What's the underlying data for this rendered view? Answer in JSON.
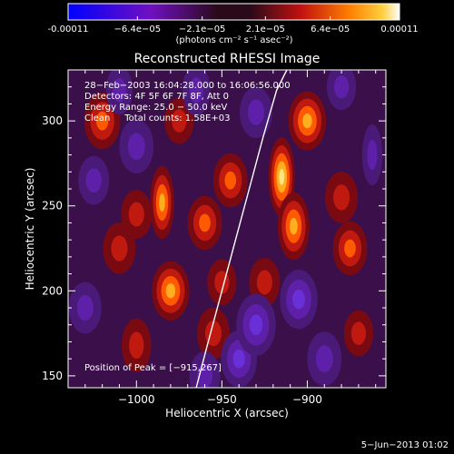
{
  "colorbar": {
    "tick_labels": [
      "-0.00011",
      "−6.4e−05",
      "−2.1e−05",
      "2.1e−05",
      "6.4e−05",
      "0.00011"
    ],
    "tick_values": [
      -0.00011,
      -6.4e-05,
      -2.1e-05,
      2.1e-05,
      6.4e-05,
      0.00011
    ],
    "range": [
      -0.00011,
      0.00011
    ],
    "unit_label": "(photons cm⁻² s⁻¹ asec⁻²)",
    "colormap": [
      "#0000ff",
      "#6a0dad",
      "#2a0a1a",
      "#b01010",
      "#ff6000",
      "#ffd040",
      "#ffffff"
    ]
  },
  "chart_data": {
    "type": "heatmap",
    "title": "Reconstructed RHESSI Image",
    "xlabel": "Heliocentric X (arcsec)",
    "ylabel": "Heliocentric Y (arcsec)",
    "xlim": [
      -1040,
      -854
    ],
    "ylim": [
      143,
      330
    ],
    "x_ticks": [
      -1000,
      -950,
      -900
    ],
    "x_tick_labels": [
      "−1000",
      "−950",
      "−900"
    ],
    "y_ticks": [
      150,
      200,
      250,
      300
    ],
    "y_tick_labels": [
      "150",
      "200",
      "250",
      "300"
    ],
    "annotations": [
      "28−Feb−2003 16:04:28.000 to 16:06:56.000",
      "Detectors: 4F 5F 6F 7F 8F, Att 0",
      "Energy Range: 25.0 − 50.0 keV",
      "Clean     Total counts: 1.58E+03"
    ],
    "peak_label": "Position of Peak = [−915,267]",
    "peak_position": [
      -915,
      267
    ],
    "limb_curve": {
      "x": [
        -965,
        -958,
        -950,
        -942,
        -934,
        -926,
        -918,
        -912
      ],
      "y": [
        143,
        170,
        200,
        230,
        260,
        290,
        318,
        330
      ]
    },
    "blobs": [
      {
        "x": -1020,
        "y": 300,
        "value": 7e-05
      },
      {
        "x": -1010,
        "y": 225,
        "value": 5e-05
      },
      {
        "x": -1000,
        "y": 245,
        "value": 4e-05
      },
      {
        "x": -985,
        "y": 252,
        "value": 9e-05
      },
      {
        "x": -975,
        "y": 300,
        "value": 3e-05
      },
      {
        "x": -980,
        "y": 200,
        "value": 8e-05
      },
      {
        "x": -1000,
        "y": 168,
        "value": 5e-05
      },
      {
        "x": -960,
        "y": 240,
        "value": 6e-05
      },
      {
        "x": -955,
        "y": 175,
        "value": 5e-05
      },
      {
        "x": -945,
        "y": 265,
        "value": 6e-05
      },
      {
        "x": -915,
        "y": 267,
        "value": 0.00011
      },
      {
        "x": -900,
        "y": 300,
        "value": 8e-05
      },
      {
        "x": -908,
        "y": 238,
        "value": 9e-05
      },
      {
        "x": -880,
        "y": 255,
        "value": 5e-05
      },
      {
        "x": -875,
        "y": 225,
        "value": 6e-05
      },
      {
        "x": -925,
        "y": 205,
        "value": 4e-05
      },
      {
        "x": -950,
        "y": 205,
        "value": 3e-05
      },
      {
        "x": -870,
        "y": 175,
        "value": 3e-05
      },
      {
        "x": -940,
        "y": 160,
        "value": -7e-05
      },
      {
        "x": -930,
        "y": 180,
        "value": -9e-05
      },
      {
        "x": -905,
        "y": 195,
        "value": -8e-05
      },
      {
        "x": -890,
        "y": 160,
        "value": -6e-05
      },
      {
        "x": -1030,
        "y": 190,
        "value": -5e-05
      },
      {
        "x": -1025,
        "y": 265,
        "value": -4e-05
      },
      {
        "x": -1010,
        "y": 318,
        "value": -3e-05
      },
      {
        "x": -1000,
        "y": 285,
        "value": -6e-05
      },
      {
        "x": -965,
        "y": 318,
        "value": -4e-05
      },
      {
        "x": -930,
        "y": 305,
        "value": -5e-05
      },
      {
        "x": -880,
        "y": 320,
        "value": -3e-05
      },
      {
        "x": -862,
        "y": 280,
        "value": -5e-05
      },
      {
        "x": -960,
        "y": 150,
        "value": -4e-05
      }
    ]
  },
  "footer": {
    "date": "5−Jun−2013 01:02"
  }
}
